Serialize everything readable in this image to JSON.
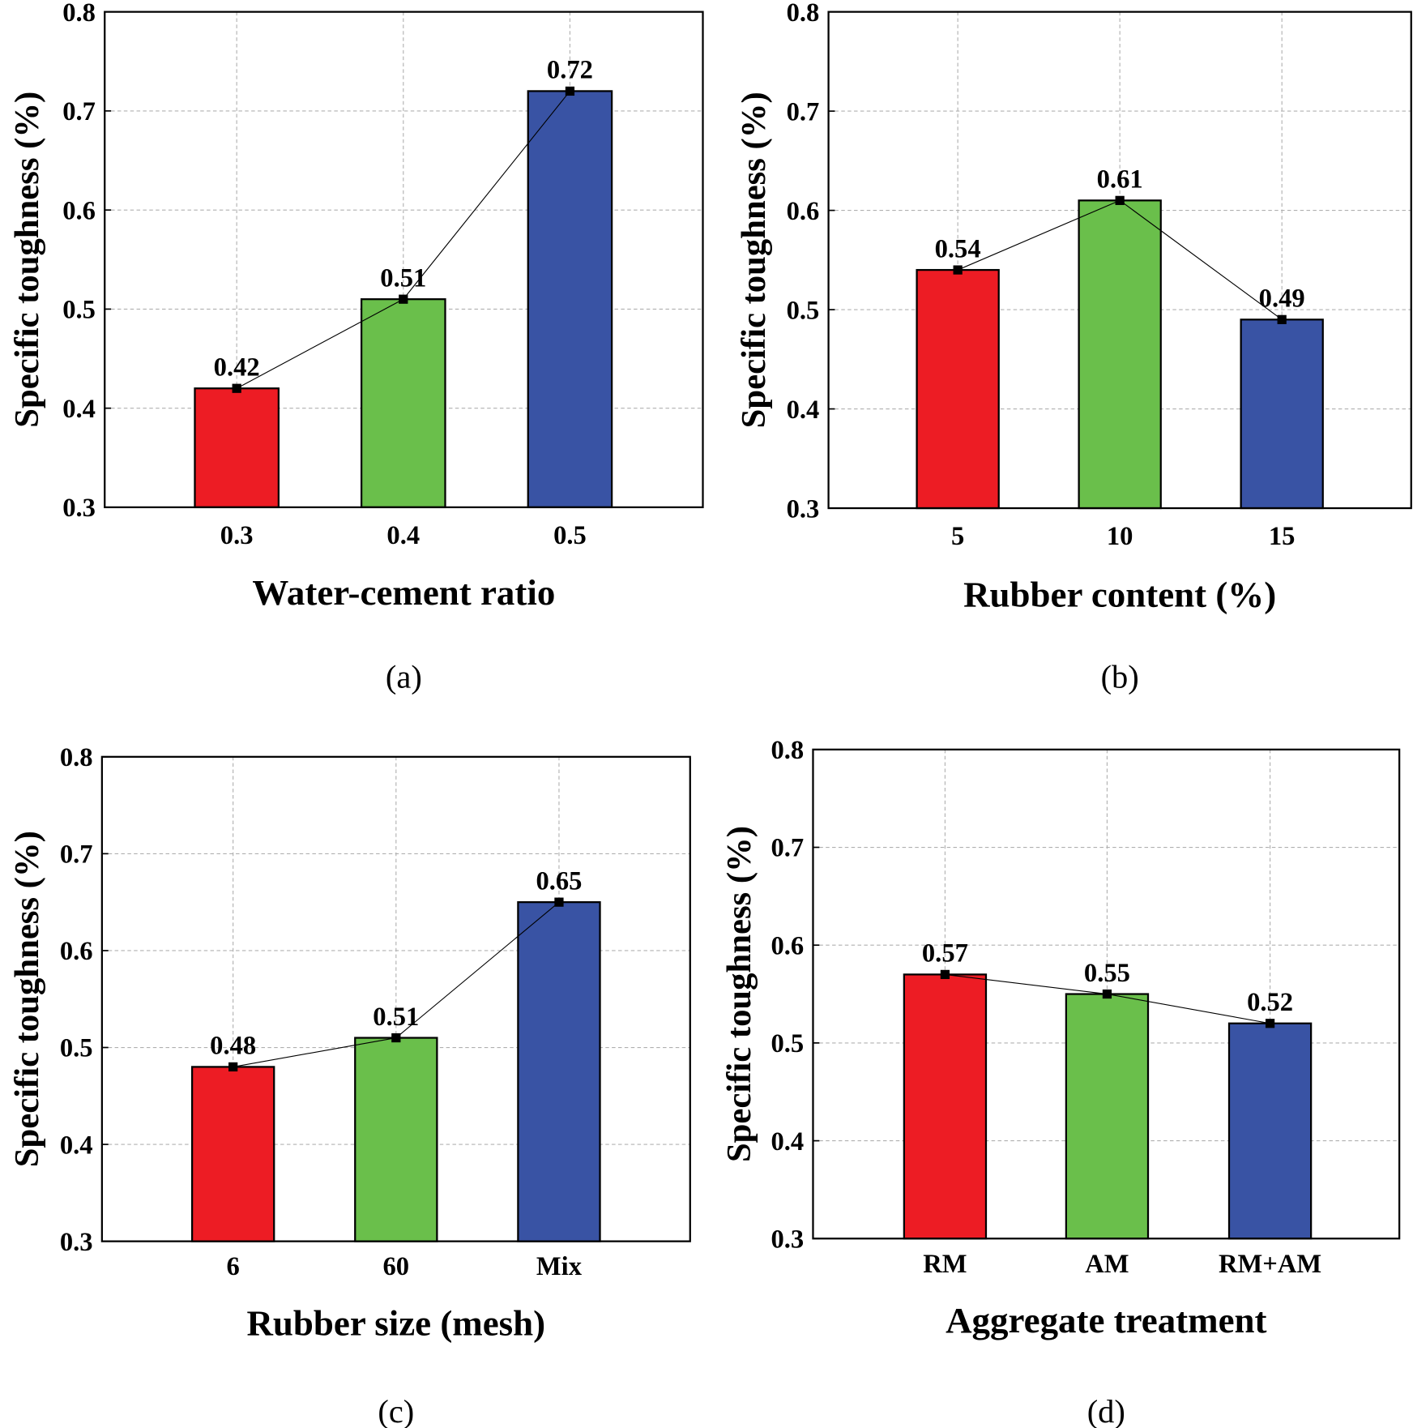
{
  "colors": {
    "bar1": "#ed1c24",
    "bar2": "#6abf4b",
    "bar3": "#3953a4",
    "line": "#000000",
    "grid": "#b0b0b0"
  },
  "chart_data": [
    {
      "type": "bar",
      "panel_label": "(a)",
      "xlabel": "Water-cement ratio",
      "ylabel": "Specific toughness (%)",
      "categories": [
        "0.3",
        "0.4",
        "0.5"
      ],
      "values": [
        0.42,
        0.51,
        0.72
      ],
      "data_labels": [
        "0.42",
        "0.51",
        "0.72"
      ],
      "ylim": [
        0.3,
        0.8
      ],
      "yticks": [
        "0.3",
        "0.4",
        "0.5",
        "0.6",
        "0.7",
        "0.8"
      ],
      "grid": true,
      "line_overlay": true
    },
    {
      "type": "bar",
      "panel_label": "(b)",
      "xlabel": "Rubber content (%)",
      "ylabel": "Specific toughness (%)",
      "categories": [
        "5",
        "10",
        "15"
      ],
      "values": [
        0.54,
        0.61,
        0.49
      ],
      "data_labels": [
        "0.54",
        "0.61",
        "0.49"
      ],
      "ylim": [
        0.3,
        0.8
      ],
      "yticks": [
        "0.3",
        "0.4",
        "0.5",
        "0.6",
        "0.7",
        "0.8"
      ],
      "grid": true,
      "line_overlay": true
    },
    {
      "type": "bar",
      "panel_label": "(c)",
      "xlabel": "Rubber size (mesh)",
      "ylabel": "Specific toughness (%)",
      "categories": [
        "6",
        "60",
        "Mix"
      ],
      "values": [
        0.48,
        0.51,
        0.65
      ],
      "data_labels": [
        "0.48",
        "0.51",
        "0.65"
      ],
      "ylim": [
        0.3,
        0.8
      ],
      "yticks": [
        "0.3",
        "0.4",
        "0.5",
        "0.6",
        "0.7",
        "0.8"
      ],
      "grid": true,
      "line_overlay": true
    },
    {
      "type": "bar",
      "panel_label": "(d)",
      "xlabel": "Aggregate treatment",
      "ylabel": "Specific toughness (%)",
      "categories": [
        "RM",
        "AM",
        "RM+AM"
      ],
      "values": [
        0.57,
        0.55,
        0.52
      ],
      "data_labels": [
        "0.57",
        "0.55",
        "0.52"
      ],
      "ylim": [
        0.3,
        0.8
      ],
      "yticks": [
        "0.3",
        "0.4",
        "0.5",
        "0.6",
        "0.7",
        "0.8"
      ],
      "grid": true,
      "line_overlay": true
    }
  ]
}
